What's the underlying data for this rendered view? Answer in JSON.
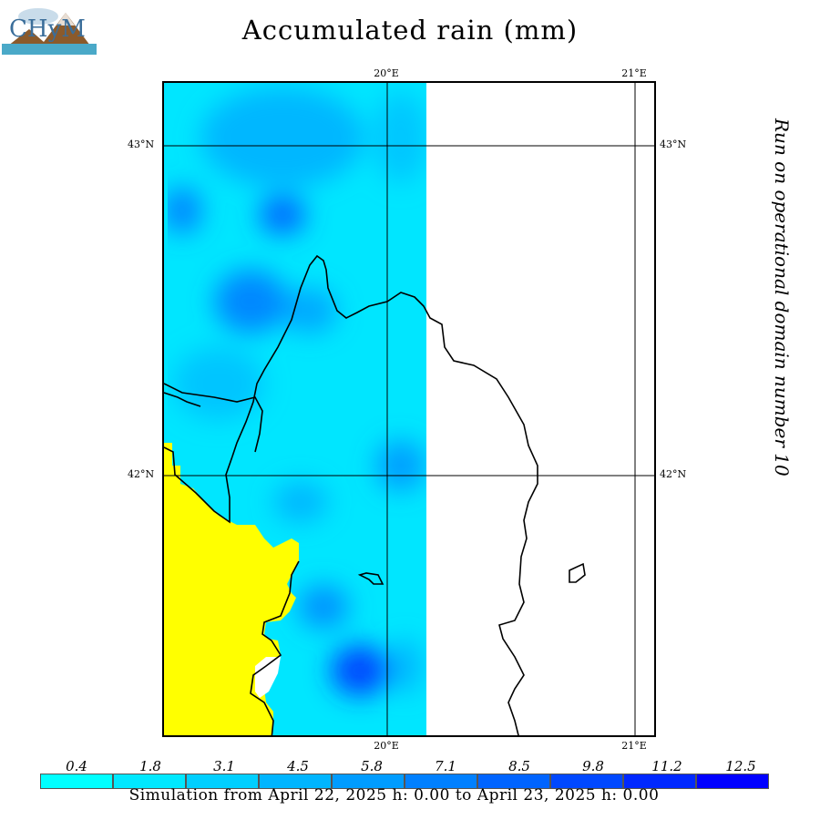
{
  "title": "Accumulated rain (mm)",
  "side_label": "Run on operational domain number 10",
  "footer": "Simulation from April 22, 2025 h: 0.00 to April 23, 2025 h: 0.00",
  "logo": {
    "text": "CHyM"
  },
  "ticks": {
    "lon_top": [
      "20°E",
      "21°E"
    ],
    "lon_bottom": [
      "20°E",
      "21°E"
    ],
    "lat_left": [
      "43°N",
      "42°N"
    ],
    "lat_right": [
      "43°N",
      "42°N"
    ]
  },
  "colorbar": {
    "labels": [
      "0.4",
      "1.8",
      "3.1",
      "4.5",
      "5.8",
      "7.1",
      "8.5",
      "9.8",
      "11.2",
      "12.5"
    ],
    "colors": [
      "#00ffff",
      "#00e8ff",
      "#00cfff",
      "#00b5ff",
      "#009cff",
      "#0080ff",
      "#0064ff",
      "#0048ff",
      "#0028ff",
      "#0000ff"
    ]
  },
  "colors": {
    "sea": "#ffff00",
    "rain_base": "#00e6ff",
    "no_data": "#ffffff",
    "border": "#000000"
  }
}
